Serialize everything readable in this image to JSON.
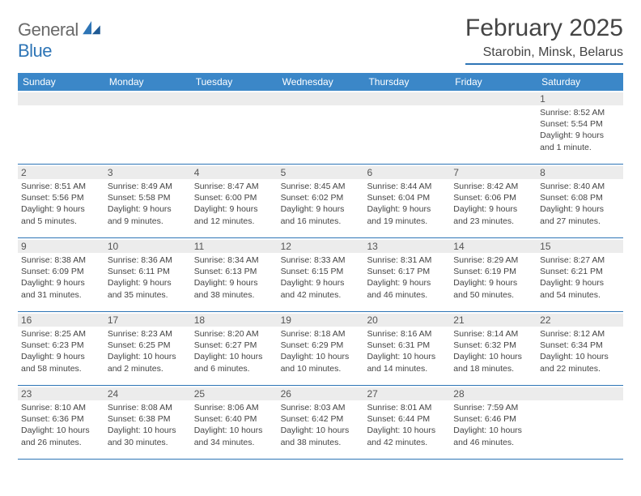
{
  "colors": {
    "brand_blue": "#2e75b6",
    "header_bar": "#3b87c8",
    "text": "#444444",
    "daynum_bg": "#ececec",
    "logo_gray": "#6a6a6a"
  },
  "logo": {
    "word1": "General",
    "word2": "Blue"
  },
  "title": {
    "month": "February 2025",
    "location": "Starobin, Minsk, Belarus"
  },
  "weekdays": [
    "Sunday",
    "Monday",
    "Tuesday",
    "Wednesday",
    "Thursday",
    "Friday",
    "Saturday"
  ],
  "weeks": [
    [
      null,
      null,
      null,
      null,
      null,
      null,
      {
        "d": "1",
        "sr": "Sunrise: 8:52 AM",
        "ss": "Sunset: 5:54 PM",
        "dl1": "Daylight: 9 hours",
        "dl2": "and 1 minute."
      }
    ],
    [
      {
        "d": "2",
        "sr": "Sunrise: 8:51 AM",
        "ss": "Sunset: 5:56 PM",
        "dl1": "Daylight: 9 hours",
        "dl2": "and 5 minutes."
      },
      {
        "d": "3",
        "sr": "Sunrise: 8:49 AM",
        "ss": "Sunset: 5:58 PM",
        "dl1": "Daylight: 9 hours",
        "dl2": "and 9 minutes."
      },
      {
        "d": "4",
        "sr": "Sunrise: 8:47 AM",
        "ss": "Sunset: 6:00 PM",
        "dl1": "Daylight: 9 hours",
        "dl2": "and 12 minutes."
      },
      {
        "d": "5",
        "sr": "Sunrise: 8:45 AM",
        "ss": "Sunset: 6:02 PM",
        "dl1": "Daylight: 9 hours",
        "dl2": "and 16 minutes."
      },
      {
        "d": "6",
        "sr": "Sunrise: 8:44 AM",
        "ss": "Sunset: 6:04 PM",
        "dl1": "Daylight: 9 hours",
        "dl2": "and 19 minutes."
      },
      {
        "d": "7",
        "sr": "Sunrise: 8:42 AM",
        "ss": "Sunset: 6:06 PM",
        "dl1": "Daylight: 9 hours",
        "dl2": "and 23 minutes."
      },
      {
        "d": "8",
        "sr": "Sunrise: 8:40 AM",
        "ss": "Sunset: 6:08 PM",
        "dl1": "Daylight: 9 hours",
        "dl2": "and 27 minutes."
      }
    ],
    [
      {
        "d": "9",
        "sr": "Sunrise: 8:38 AM",
        "ss": "Sunset: 6:09 PM",
        "dl1": "Daylight: 9 hours",
        "dl2": "and 31 minutes."
      },
      {
        "d": "10",
        "sr": "Sunrise: 8:36 AM",
        "ss": "Sunset: 6:11 PM",
        "dl1": "Daylight: 9 hours",
        "dl2": "and 35 minutes."
      },
      {
        "d": "11",
        "sr": "Sunrise: 8:34 AM",
        "ss": "Sunset: 6:13 PM",
        "dl1": "Daylight: 9 hours",
        "dl2": "and 38 minutes."
      },
      {
        "d": "12",
        "sr": "Sunrise: 8:33 AM",
        "ss": "Sunset: 6:15 PM",
        "dl1": "Daylight: 9 hours",
        "dl2": "and 42 minutes."
      },
      {
        "d": "13",
        "sr": "Sunrise: 8:31 AM",
        "ss": "Sunset: 6:17 PM",
        "dl1": "Daylight: 9 hours",
        "dl2": "and 46 minutes."
      },
      {
        "d": "14",
        "sr": "Sunrise: 8:29 AM",
        "ss": "Sunset: 6:19 PM",
        "dl1": "Daylight: 9 hours",
        "dl2": "and 50 minutes."
      },
      {
        "d": "15",
        "sr": "Sunrise: 8:27 AM",
        "ss": "Sunset: 6:21 PM",
        "dl1": "Daylight: 9 hours",
        "dl2": "and 54 minutes."
      }
    ],
    [
      {
        "d": "16",
        "sr": "Sunrise: 8:25 AM",
        "ss": "Sunset: 6:23 PM",
        "dl1": "Daylight: 9 hours",
        "dl2": "and 58 minutes."
      },
      {
        "d": "17",
        "sr": "Sunrise: 8:23 AM",
        "ss": "Sunset: 6:25 PM",
        "dl1": "Daylight: 10 hours",
        "dl2": "and 2 minutes."
      },
      {
        "d": "18",
        "sr": "Sunrise: 8:20 AM",
        "ss": "Sunset: 6:27 PM",
        "dl1": "Daylight: 10 hours",
        "dl2": "and 6 minutes."
      },
      {
        "d": "19",
        "sr": "Sunrise: 8:18 AM",
        "ss": "Sunset: 6:29 PM",
        "dl1": "Daylight: 10 hours",
        "dl2": "and 10 minutes."
      },
      {
        "d": "20",
        "sr": "Sunrise: 8:16 AM",
        "ss": "Sunset: 6:31 PM",
        "dl1": "Daylight: 10 hours",
        "dl2": "and 14 minutes."
      },
      {
        "d": "21",
        "sr": "Sunrise: 8:14 AM",
        "ss": "Sunset: 6:32 PM",
        "dl1": "Daylight: 10 hours",
        "dl2": "and 18 minutes."
      },
      {
        "d": "22",
        "sr": "Sunrise: 8:12 AM",
        "ss": "Sunset: 6:34 PM",
        "dl1": "Daylight: 10 hours",
        "dl2": "and 22 minutes."
      }
    ],
    [
      {
        "d": "23",
        "sr": "Sunrise: 8:10 AM",
        "ss": "Sunset: 6:36 PM",
        "dl1": "Daylight: 10 hours",
        "dl2": "and 26 minutes."
      },
      {
        "d": "24",
        "sr": "Sunrise: 8:08 AM",
        "ss": "Sunset: 6:38 PM",
        "dl1": "Daylight: 10 hours",
        "dl2": "and 30 minutes."
      },
      {
        "d": "25",
        "sr": "Sunrise: 8:06 AM",
        "ss": "Sunset: 6:40 PM",
        "dl1": "Daylight: 10 hours",
        "dl2": "and 34 minutes."
      },
      {
        "d": "26",
        "sr": "Sunrise: 8:03 AM",
        "ss": "Sunset: 6:42 PM",
        "dl1": "Daylight: 10 hours",
        "dl2": "and 38 minutes."
      },
      {
        "d": "27",
        "sr": "Sunrise: 8:01 AM",
        "ss": "Sunset: 6:44 PM",
        "dl1": "Daylight: 10 hours",
        "dl2": "and 42 minutes."
      },
      {
        "d": "28",
        "sr": "Sunrise: 7:59 AM",
        "ss": "Sunset: 6:46 PM",
        "dl1": "Daylight: 10 hours",
        "dl2": "and 46 minutes."
      },
      null
    ]
  ]
}
